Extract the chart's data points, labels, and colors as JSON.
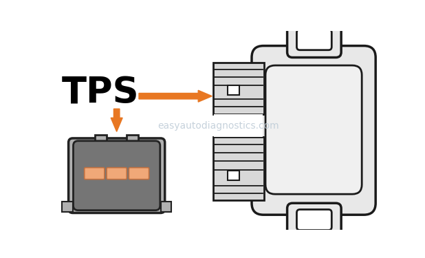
{
  "bg_color": "#ffffff",
  "tps_label": "TPS",
  "tps_label_color": "#000000",
  "tps_label_fontsize": 38,
  "arrow_color": "#E87722",
  "watermark": "easyautodiagnostics.com",
  "watermark_color": "#c0cdd8",
  "watermark_fontsize": 10,
  "connector_body_color": "#757575",
  "connector_shell_color": "#b0b0b0",
  "connector_shell_dark": "#888888",
  "connector_outline_color": "#222222",
  "pin_color": "#F0A878",
  "pin_outline": "#c07040",
  "sensor_outline": "#1a1a1a",
  "sensor_lw": 2.5,
  "sensor_fill": "#e0e0e0",
  "sensor_body_fill": "#e8e8e8",
  "sensor_inner_fill": "#f0f0f0",
  "conn_block_fill": "#d8d8d8",
  "conn_block_line": "#222222"
}
